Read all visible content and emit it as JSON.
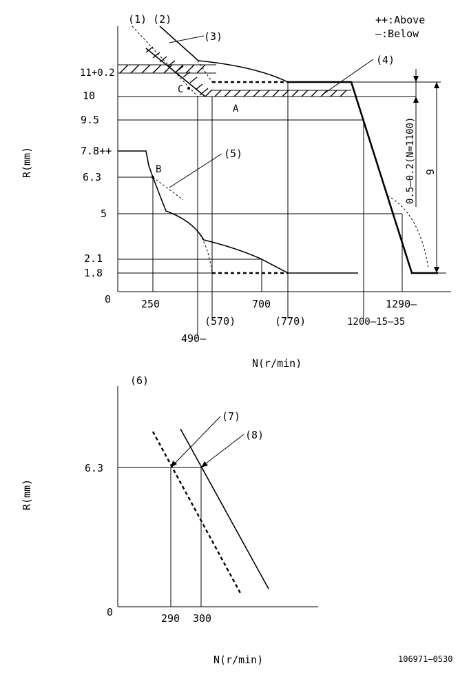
{
  "legend": {
    "above": "++:Above",
    "below": "—:Below"
  },
  "top_chart": {
    "ylabel": "R(mm)",
    "xlabel": "N(r/min)",
    "y_ticks": [
      "11+0.2",
      "10",
      "9.5",
      "7.8++",
      "6.3",
      "5",
      "2.1",
      "1.8",
      "0"
    ],
    "x_ticks": [
      "250",
      "(570)",
      "700",
      "(770)",
      "1200–15–35",
      "1290—"
    ],
    "x_tick_low": "490—",
    "callouts": [
      "(1)",
      "(2)",
      "(3)",
      "(4)",
      "(5)"
    ],
    "points": [
      "A",
      "B",
      "C"
    ],
    "dim_small": "0.5–0.2(N=1100)",
    "dim_large": "9"
  },
  "bottom_chart": {
    "panel_label": "(6)",
    "ylabel": "R(mm)",
    "xlabel": "N(r/min)",
    "y_ticks": [
      "6.3",
      "0"
    ],
    "x_ticks": [
      "290",
      "300"
    ],
    "callouts": [
      "(7)",
      "(8)"
    ]
  },
  "footer": {
    "code": "106971–0530"
  }
}
